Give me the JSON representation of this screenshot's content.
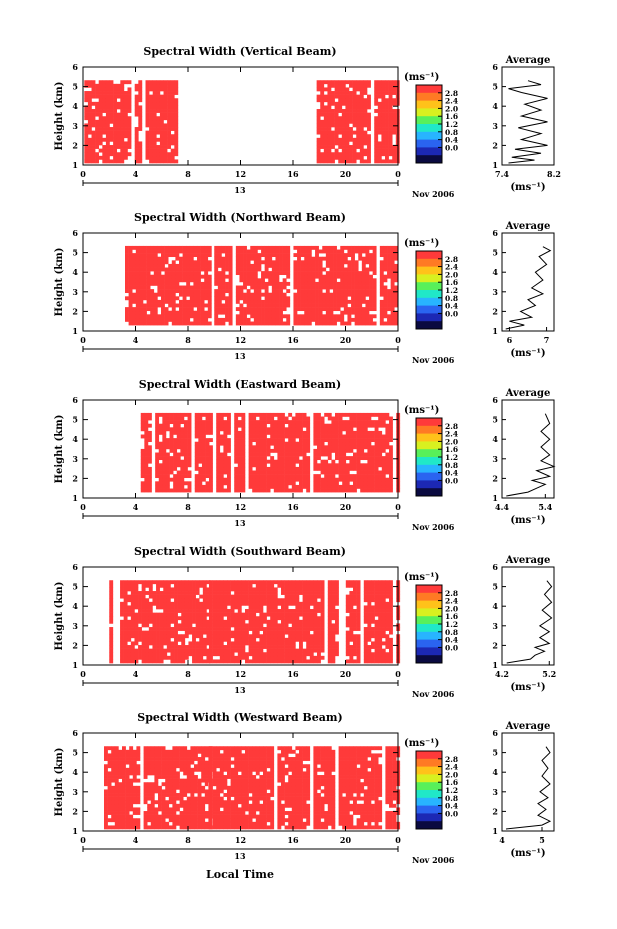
{
  "chart_data": {
    "type": "heatmap",
    "xlabel": "Local Time",
    "date_label": "Nov 2006",
    "day_label": "13",
    "x_ticks": [
      "0",
      "4",
      "8",
      "12",
      "16",
      "20",
      "0"
    ],
    "xlim": [
      0,
      24
    ],
    "ylabel": "Height (km)",
    "y_ticks": [
      "1",
      "2",
      "3",
      "4",
      "5",
      "6"
    ],
    "ylim": [
      1,
      6
    ],
    "colorbar": {
      "unit": "(ms⁻¹)",
      "tick_labels": [
        "2.8",
        "2.4",
        "2.0",
        "1.6",
        "1.2",
        "0.8",
        "0.4",
        "0.0"
      ],
      "colors": [
        "#ff3a3a",
        "#ff7a24",
        "#ffc21a",
        "#d8f020",
        "#58f05a",
        "#20e8c8",
        "#28b4ff",
        "#2a64f0",
        "#1c28b4",
        "#0a0a40"
      ]
    },
    "data_color": "#ff3a3a",
    "panels": [
      {
        "title": "Spectral Width (Vertical Beam)",
        "data_bands": [
          {
            "x_range": [
              0.1,
              7.2
            ],
            "y_range": [
              1.1,
              5.3
            ]
          },
          {
            "x_range": [
              17.8,
              23.9
            ],
            "y_range": [
              1.1,
              5.3
            ]
          }
        ],
        "average": {
          "title": "Average",
          "xlabel": "(ms⁻¹)",
          "x_ticks": [
            "7.4",
            "8.2"
          ],
          "xlim": [
            7.4,
            8.2
          ],
          "profile": [
            [
              7.5,
              1.1
            ],
            [
              7.9,
              1.25
            ],
            [
              7.55,
              1.4
            ],
            [
              8.0,
              1.6
            ],
            [
              7.6,
              1.8
            ],
            [
              8.1,
              2.0
            ],
            [
              7.7,
              2.3
            ],
            [
              8.0,
              2.6
            ],
            [
              7.65,
              2.9
            ],
            [
              8.1,
              3.2
            ],
            [
              7.7,
              3.5
            ],
            [
              8.0,
              3.8
            ],
            [
              7.75,
              4.1
            ],
            [
              8.1,
              4.4
            ],
            [
              7.7,
              4.7
            ],
            [
              7.5,
              4.9
            ],
            [
              8.0,
              5.1
            ],
            [
              7.8,
              5.3
            ]
          ]
        }
      },
      {
        "title": "Spectral Width (Northward Beam)",
        "data_bands": [
          {
            "x_range": [
              3.2,
              9.6
            ],
            "y_range": [
              1.3,
              5.3
            ]
          },
          {
            "x_range": [
              10.0,
              23.9
            ],
            "y_range": [
              1.3,
              5.3
            ]
          }
        ],
        "average": {
          "title": "Average",
          "xlabel": "(ms⁻¹)",
          "x_ticks": [
            "6",
            "7"
          ],
          "xlim": [
            5.8,
            7.2
          ],
          "profile": [
            [
              5.9,
              1.1
            ],
            [
              6.4,
              1.3
            ],
            [
              6.0,
              1.5
            ],
            [
              6.6,
              1.7
            ],
            [
              6.3,
              2.0
            ],
            [
              6.7,
              2.3
            ],
            [
              6.5,
              2.6
            ],
            [
              6.9,
              2.9
            ],
            [
              6.6,
              3.2
            ],
            [
              6.9,
              3.6
            ],
            [
              6.7,
              4.0
            ],
            [
              7.0,
              4.4
            ],
            [
              6.8,
              4.8
            ],
            [
              7.1,
              5.1
            ],
            [
              6.9,
              5.3
            ]
          ]
        }
      },
      {
        "title": "Spectral Width (Eastward Beam)",
        "data_bands": [
          {
            "x_range": [
              4.4,
              9.6
            ],
            "y_range": [
              1.3,
              5.3
            ]
          },
          {
            "x_range": [
              9.6,
              23.9
            ],
            "y_range": [
              1.3,
              5.3
            ]
          }
        ],
        "average": {
          "title": "Average",
          "xlabel": "(ms⁻¹)",
          "x_ticks": [
            "4.4",
            "5.4"
          ],
          "xlim": [
            4.4,
            5.6
          ],
          "profile": [
            [
              4.5,
              1.1
            ],
            [
              5.0,
              1.3
            ],
            [
              5.2,
              1.5
            ],
            [
              5.4,
              1.7
            ],
            [
              5.1,
              1.9
            ],
            [
              5.5,
              2.1
            ],
            [
              5.2,
              2.4
            ],
            [
              5.6,
              2.6
            ],
            [
              5.3,
              2.9
            ],
            [
              5.5,
              3.2
            ],
            [
              5.3,
              3.6
            ],
            [
              5.5,
              4.0
            ],
            [
              5.3,
              4.4
            ],
            [
              5.5,
              4.8
            ],
            [
              5.4,
              5.3
            ]
          ]
        }
      },
      {
        "title": "Spectral Width (Southward Beam)",
        "data_bands": [
          {
            "x_range": [
              2.0,
              9.6
            ],
            "y_range": [
              1.1,
              5.3
            ]
          },
          {
            "x_range": [
              9.6,
              23.9
            ],
            "y_range": [
              1.1,
              5.3
            ]
          }
        ],
        "average": {
          "title": "Average",
          "xlabel": "(ms⁻¹)",
          "x_ticks": [
            "4.2",
            "5.2"
          ],
          "xlim": [
            4.2,
            5.3
          ],
          "profile": [
            [
              4.3,
              1.1
            ],
            [
              4.8,
              1.3
            ],
            [
              4.9,
              1.5
            ],
            [
              5.1,
              1.7
            ],
            [
              4.9,
              1.9
            ],
            [
              5.2,
              2.1
            ],
            [
              5.0,
              2.4
            ],
            [
              5.2,
              2.7
            ],
            [
              5.0,
              3.0
            ],
            [
              5.25,
              3.4
            ],
            [
              5.05,
              3.8
            ],
            [
              5.25,
              4.2
            ],
            [
              5.1,
              4.6
            ],
            [
              5.25,
              5.0
            ],
            [
              5.15,
              5.3
            ]
          ]
        }
      },
      {
        "title": "Spectral Width (Westward Beam)",
        "data_bands": [
          {
            "x_range": [
              1.6,
              9.6
            ],
            "y_range": [
              1.1,
              5.3
            ]
          },
          {
            "x_range": [
              9.6,
              23.9
            ],
            "y_range": [
              1.1,
              5.3
            ]
          }
        ],
        "average": {
          "title": "Average",
          "xlabel": "(ms⁻¹)",
          "x_ticks": [
            "4",
            "5"
          ],
          "xlim": [
            4.0,
            5.3
          ],
          "profile": [
            [
              4.1,
              1.1
            ],
            [
              5.0,
              1.3
            ],
            [
              5.2,
              1.5
            ],
            [
              4.9,
              1.8
            ],
            [
              5.1,
              2.1
            ],
            [
              4.9,
              2.4
            ],
            [
              5.15,
              2.7
            ],
            [
              4.95,
              3.0
            ],
            [
              5.2,
              3.4
            ],
            [
              5.0,
              3.8
            ],
            [
              5.15,
              4.2
            ],
            [
              5.0,
              4.6
            ],
            [
              5.2,
              5.0
            ],
            [
              5.1,
              5.3
            ]
          ]
        }
      }
    ]
  }
}
